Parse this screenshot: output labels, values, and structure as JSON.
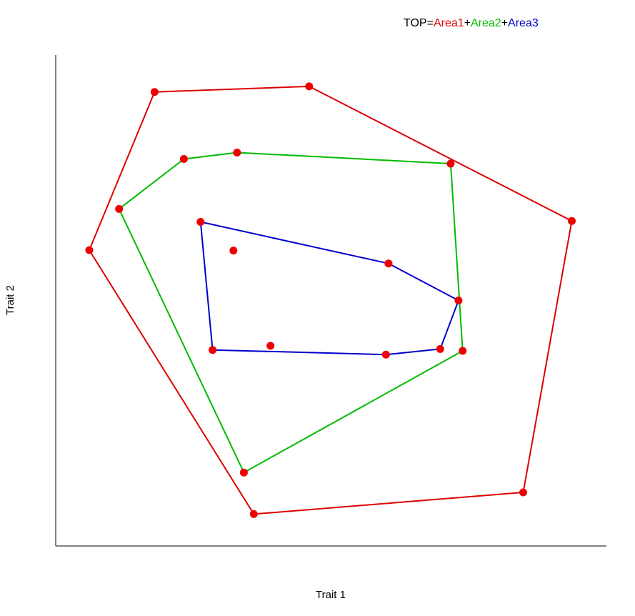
{
  "chart_data": {
    "type": "scatter",
    "title_parts": [
      {
        "text": "TOP=",
        "color": "#000000"
      },
      {
        "text": "Area1",
        "color": "#dd0000"
      },
      {
        "text": "+",
        "color": "#000000"
      },
      {
        "text": "Area2",
        "color": "#00bb00"
      },
      {
        "text": "+",
        "color": "#000000"
      },
      {
        "text": "Area3",
        "color": "#0000cc"
      }
    ],
    "xlabel": "Trait 1",
    "ylabel": "Trait 2",
    "xlim": [
      0,
      100
    ],
    "ylim": [
      0,
      100
    ],
    "ticks_shown": false,
    "grid": false,
    "points": [
      {
        "x": 3.7,
        "y": 60.9
      },
      {
        "x": 16.2,
        "y": 95.1
      },
      {
        "x": 45.8,
        "y": 96.3
      },
      {
        "x": 96.1,
        "y": 67.2
      },
      {
        "x": 86.8,
        "y": 8.5
      },
      {
        "x": 35.2,
        "y": 3.8
      },
      {
        "x": 9.4,
        "y": 69.8
      },
      {
        "x": 21.8,
        "y": 80.6
      },
      {
        "x": 32.0,
        "y": 82.0
      },
      {
        "x": 72.9,
        "y": 79.6
      },
      {
        "x": 75.2,
        "y": 39.1
      },
      {
        "x": 33.3,
        "y": 12.8
      },
      {
        "x": 25.0,
        "y": 67.0
      },
      {
        "x": 31.3,
        "y": 60.8
      },
      {
        "x": 61.0,
        "y": 58.0
      },
      {
        "x": 74.4,
        "y": 50.0
      },
      {
        "x": 70.9,
        "y": 39.5
      },
      {
        "x": 60.5,
        "y": 38.3
      },
      {
        "x": 38.4,
        "y": 40.2
      },
      {
        "x": 27.3,
        "y": 39.3
      }
    ],
    "point_color": "#ee0000",
    "series": [
      {
        "name": "Area1",
        "color": "#dd0000",
        "x": [
          16.2,
          45.8,
          96.1,
          86.8,
          35.2,
          3.7
        ],
        "y": [
          95.1,
          96.3,
          67.2,
          8.5,
          3.8,
          60.9
        ]
      },
      {
        "name": "Area2",
        "color": "#00bb00",
        "x": [
          21.8,
          32.0,
          72.9,
          75.2,
          33.3,
          9.4
        ],
        "y": [
          80.6,
          82.0,
          79.6,
          39.1,
          12.8,
          69.8
        ]
      },
      {
        "name": "Area3",
        "color": "#0000cc",
        "x": [
          25.0,
          61.0,
          74.4,
          70.9,
          60.5,
          27.3
        ],
        "y": [
          67.0,
          58.0,
          50.0,
          39.5,
          38.3,
          39.3
        ]
      }
    ]
  }
}
